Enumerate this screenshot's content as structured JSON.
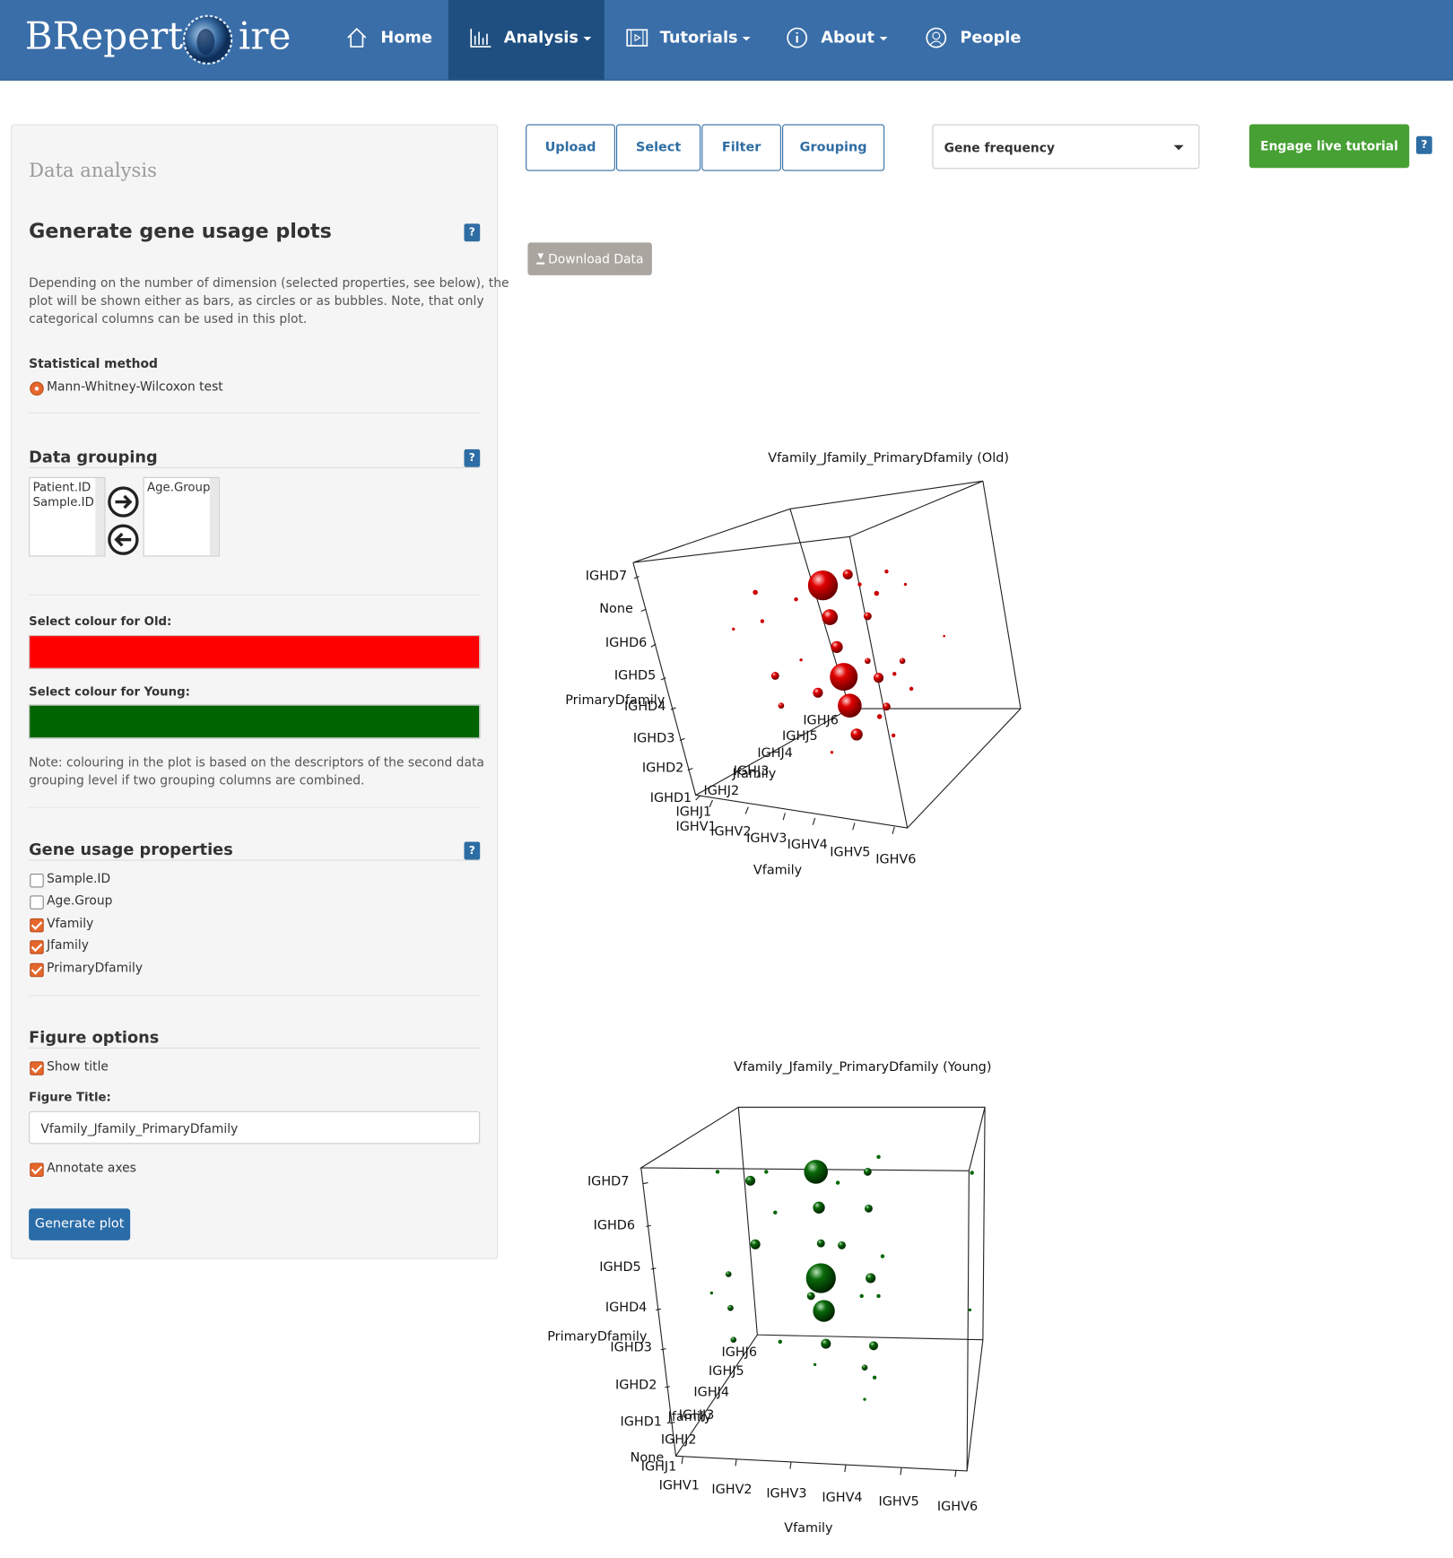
{
  "navbar": {
    "brand_left": "BRepert",
    "brand_right": "ire",
    "items": [
      "Home",
      "Analysis",
      "Tutorials",
      "About",
      "People"
    ]
  },
  "help_label": "?",
  "sidebar": {
    "heading": "Data analysis",
    "title": "Generate gene usage plots",
    "description": [
      "Depending on the number of dimension (selected properties, see below), the",
      "plot will be shown either as bars, as circles or as bubbles. Note, that only",
      "categorical columns can be used in this plot."
    ],
    "stat_label": "Statistical method",
    "stat_option": "Mann-Whitney-Wilcoxon test",
    "grouping_title": "Data grouping",
    "grouping_available": [
      "Patient.ID",
      "Sample.ID"
    ],
    "grouping_selected": [
      "Age.Group"
    ],
    "colour_old_label": "Select colour for Old:",
    "colour_old": "#ff0000",
    "colour_young_label": "Select colour for Young:",
    "colour_young": "#006400",
    "note": [
      "Note: colouring in the plot is based on the descriptors of the second data",
      "grouping level if two grouping columns are combined."
    ],
    "properties_title": "Gene usage properties",
    "properties": [
      {
        "label": "Sample.ID",
        "checked": false
      },
      {
        "label": "Age.Group",
        "checked": false
      },
      {
        "label": "Vfamily",
        "checked": true
      },
      {
        "label": "Jfamily",
        "checked": true
      },
      {
        "label": "PrimaryDfamily",
        "checked": true
      }
    ],
    "figure_options_title": "Figure options",
    "show_title": {
      "label": "Show title",
      "checked": true
    },
    "figure_title_label": "Figure Title:",
    "figure_title_value": "Vfamily_Jfamily_PrimaryDfamily",
    "annotate_axes": {
      "label": "Annotate axes",
      "checked": true
    },
    "generate_button": "Generate plot"
  },
  "toolbar": {
    "tabs": [
      "Upload",
      "Select",
      "Filter",
      "Grouping"
    ],
    "select_value": "Gene frequency",
    "tutorial_button": "Engage live tutorial",
    "download_button": "Download Data"
  },
  "plots": [
    {
      "title": "Vfamily_Jfamily_PrimaryDfamily (Old)",
      "color": "#ff0000",
      "z_label": "PrimaryDfamily",
      "z_ticks": [
        "IGHD7",
        "None",
        "IGHD6",
        "IGHD5",
        "IGHD4",
        "IGHD3",
        "IGHD2",
        "IGHD1"
      ],
      "y_label": "Jfamily",
      "y_ticks": [
        "IGHJ1",
        "IGHJ2",
        "IGHJ3",
        "IGHJ4",
        "IGHJ5",
        "IGHJ6"
      ],
      "x_label": "Vfamily",
      "x_ticks": [
        "IGHV1",
        "IGHV2",
        "IGHV3",
        "IGHV4",
        "IGHV5",
        "IGHV6"
      ]
    },
    {
      "title": "Vfamily_Jfamily_PrimaryDfamily (Young)",
      "color": "#006400",
      "z_label": "PrimaryDfamily",
      "z_ticks": [
        "IGHD7",
        "IGHD6",
        "IGHD5",
        "IGHD4",
        "IGHD3",
        "IGHD2",
        "IGHD1",
        "None"
      ],
      "y_label": "Jfamily",
      "y_ticks": [
        "IGHJ1",
        "IGHJ2",
        "IGHJ3",
        "IGHJ4",
        "IGHJ5",
        "IGHJ6"
      ],
      "x_label": "Vfamily",
      "x_ticks": [
        "IGHV1",
        "IGHV2",
        "IGHV3",
        "IGHV4",
        "IGHV5",
        "IGHV6"
      ]
    }
  ]
}
